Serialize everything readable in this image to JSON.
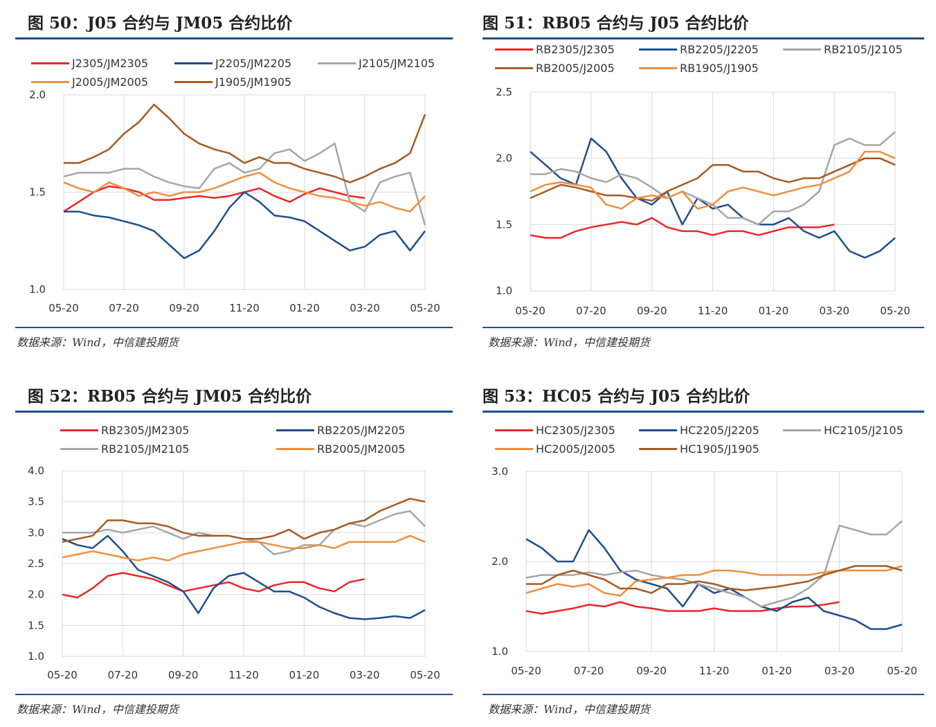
{
  "colors": {
    "red": "#e8262a",
    "blue": "#1f4e8c",
    "gray": "#a6a6a6",
    "orange": "#f28e3c",
    "brown": "#a55a23"
  },
  "chart_data": [
    {
      "type": "line",
      "title": "图 50：J05 合约与 JM05 合约比价",
      "source": "数据来源：Wind，中信建投期货",
      "x_ticks": [
        "05-20",
        "07-20",
        "09-20",
        "11-20",
        "01-20",
        "03-20",
        "05-20"
      ],
      "ylim": [
        1.0,
        2.0
      ],
      "y_ticks": [
        "1.0",
        "1.5",
        "2.0"
      ],
      "grid": true,
      "legend": "top",
      "series": [
        {
          "name": "J2305/JM2305",
          "color": "#e8262a",
          "values": [
            1.4,
            1.45,
            1.5,
            1.53,
            1.52,
            1.5,
            1.46,
            1.46,
            1.47,
            1.48,
            1.47,
            1.48,
            1.5,
            1.52,
            1.48,
            1.45,
            1.49,
            1.52,
            1.5,
            1.48,
            1.47,
            null,
            null,
            null,
            null
          ]
        },
        {
          "name": "J2205/JM2205",
          "color": "#1f4e8c",
          "values": [
            1.4,
            1.4,
            1.38,
            1.37,
            1.35,
            1.33,
            1.3,
            1.23,
            1.16,
            1.2,
            1.3,
            1.42,
            1.5,
            1.45,
            1.38,
            1.37,
            1.35,
            1.3,
            1.25,
            1.2,
            1.22,
            1.28,
            1.3,
            1.2,
            1.3
          ]
        },
        {
          "name": "J2105/JM2105",
          "color": "#a6a6a6",
          "values": [
            1.58,
            1.6,
            1.6,
            1.6,
            1.62,
            1.62,
            1.58,
            1.55,
            1.53,
            1.52,
            1.62,
            1.65,
            1.6,
            1.62,
            1.7,
            1.72,
            1.66,
            1.7,
            1.75,
            1.45,
            1.4,
            1.55,
            1.58,
            1.6,
            1.33
          ]
        },
        {
          "name": "J2005/JM2005",
          "color": "#f28e3c",
          "values": [
            1.55,
            1.52,
            1.5,
            1.55,
            1.52,
            1.48,
            1.5,
            1.48,
            1.5,
            1.5,
            1.52,
            1.55,
            1.58,
            1.6,
            1.55,
            1.52,
            1.5,
            1.48,
            1.47,
            1.45,
            1.43,
            1.45,
            1.42,
            1.4,
            1.48
          ]
        },
        {
          "name": "J1905/JM1905",
          "color": "#a55a23",
          "values": [
            1.65,
            1.65,
            1.68,
            1.72,
            1.8,
            1.86,
            1.95,
            1.88,
            1.8,
            1.75,
            1.72,
            1.7,
            1.65,
            1.68,
            1.65,
            1.65,
            1.62,
            1.6,
            1.58,
            1.55,
            1.58,
            1.62,
            1.65,
            1.7,
            1.9
          ]
        }
      ]
    },
    {
      "type": "line",
      "title": "图 51：RB05 合约与 J05 合约比价",
      "source": "数据来源：Wind，中信建投期货",
      "x_ticks": [
        "05-20",
        "07-20",
        "09-20",
        "11-20",
        "01-20",
        "03-20",
        "05-20"
      ],
      "ylim": [
        1.0,
        2.5
      ],
      "y_ticks": [
        "1.0",
        "1.5",
        "2.0",
        "2.5"
      ],
      "grid": true,
      "legend": "top",
      "series": [
        {
          "name": "RB2305/J2305",
          "color": "#e8262a",
          "values": [
            1.42,
            1.4,
            1.4,
            1.45,
            1.48,
            1.5,
            1.52,
            1.5,
            1.55,
            1.48,
            1.45,
            1.45,
            1.42,
            1.45,
            1.45,
            1.42,
            1.45,
            1.48,
            1.48,
            1.48,
            1.5,
            null,
            null,
            null,
            null
          ]
        },
        {
          "name": "RB2205/J2205",
          "color": "#1f4e8c",
          "values": [
            2.05,
            1.95,
            1.85,
            1.8,
            2.15,
            2.05,
            1.85,
            1.7,
            1.65,
            1.75,
            1.5,
            1.7,
            1.62,
            1.65,
            1.55,
            1.5,
            1.5,
            1.55,
            1.45,
            1.4,
            1.45,
            1.3,
            1.25,
            1.3,
            1.4
          ]
        },
        {
          "name": "RB2105/J2105",
          "color": "#a6a6a6",
          "values": [
            1.88,
            1.88,
            1.92,
            1.9,
            1.85,
            1.82,
            1.88,
            1.85,
            1.78,
            1.7,
            1.75,
            1.7,
            1.65,
            1.55,
            1.55,
            1.5,
            1.6,
            1.6,
            1.65,
            1.75,
            2.1,
            2.15,
            2.1,
            2.1,
            2.2
          ]
        },
        {
          "name": "RB2005/J2005",
          "color": "#a55a23",
          "values": [
            1.7,
            1.75,
            1.8,
            1.78,
            1.75,
            1.72,
            1.72,
            1.7,
            1.68,
            1.75,
            1.8,
            1.85,
            1.95,
            1.95,
            1.9,
            1.9,
            1.85,
            1.82,
            1.85,
            1.85,
            1.9,
            1.95,
            2.0,
            2.0,
            1.95
          ]
        },
        {
          "name": "RB1905/J1905",
          "color": "#f28e3c",
          "values": [
            1.75,
            1.8,
            1.82,
            1.8,
            1.78,
            1.65,
            1.62,
            1.7,
            1.72,
            1.7,
            1.75,
            1.62,
            1.65,
            1.75,
            1.78,
            1.75,
            1.72,
            1.75,
            1.78,
            1.8,
            1.85,
            1.9,
            2.05,
            2.05,
            2.0
          ]
        }
      ]
    },
    {
      "type": "line",
      "title": "图 52：RB05 合约与 JM05 合约比价",
      "source": "数据来源：Wind，中信建投期货",
      "x_ticks": [
        "05-20",
        "07-20",
        "09-20",
        "11-20",
        "01-20",
        "03-20",
        "05-20"
      ],
      "ylim": [
        1.0,
        4.0
      ],
      "y_ticks": [
        "1.0",
        "1.5",
        "2.0",
        "2.5",
        "3.0",
        "3.5",
        "4.0"
      ],
      "grid": true,
      "legend": "top",
      "series": [
        {
          "name": "RB2305/JM2305",
          "color": "#e8262a",
          "values": [
            2.0,
            1.95,
            2.1,
            2.3,
            2.35,
            2.3,
            2.25,
            2.15,
            2.05,
            2.1,
            2.15,
            2.2,
            2.1,
            2.05,
            2.15,
            2.2,
            2.2,
            2.1,
            2.05,
            2.2,
            2.25,
            null,
            null,
            null,
            null
          ]
        },
        {
          "name": "RB2205/JM2205",
          "color": "#1f4e8c",
          "values": [
            2.9,
            2.8,
            2.75,
            2.95,
            2.7,
            2.4,
            2.3,
            2.2,
            2.05,
            1.7,
            2.1,
            2.3,
            2.35,
            2.2,
            2.05,
            2.05,
            1.95,
            1.8,
            1.7,
            1.62,
            1.6,
            1.62,
            1.65,
            1.62,
            1.75
          ]
        },
        {
          "name": "RB2105/JM2105",
          "color": "#a6a6a6",
          "values": [
            3.0,
            3.0,
            3.0,
            3.05,
            3.0,
            3.05,
            3.1,
            3.0,
            2.9,
            3.0,
            2.95,
            2.95,
            2.9,
            2.85,
            2.65,
            2.7,
            2.8,
            2.8,
            3.05,
            3.15,
            3.1,
            3.2,
            3.3,
            3.35,
            3.1
          ]
        },
        {
          "name": "RB2005/JM2005",
          "color": "#f28e3c",
          "values": [
            2.6,
            2.65,
            2.7,
            2.65,
            2.6,
            2.55,
            2.6,
            2.55,
            2.65,
            2.7,
            2.75,
            2.8,
            2.85,
            2.85,
            2.8,
            2.75,
            2.75,
            2.8,
            2.75,
            2.85,
            2.85,
            2.85,
            2.85,
            2.95,
            2.85
          ]
        },
        {
          "color": "#a55a23",
          "values": [
            2.85,
            2.9,
            2.95,
            3.2,
            3.2,
            3.15,
            3.15,
            3.1,
            3.0,
            2.95,
            2.95,
            2.95,
            2.9,
            2.9,
            2.95,
            3.05,
            2.9,
            3.0,
            3.05,
            3.15,
            3.2,
            3.35,
            3.45,
            3.55,
            3.5
          ]
        }
      ]
    },
    {
      "type": "line",
      "title": "图 53：HC05 合约与 J05 合约比价",
      "source": "数据来源：Wind，中信建投期货",
      "x_ticks": [
        "05-20",
        "07-20",
        "09-20",
        "11-20",
        "01-20",
        "03-20",
        "05-20"
      ],
      "ylim": [
        1.0,
        3.0
      ],
      "y_ticks": [
        "1.0",
        "2.0",
        "3.0"
      ],
      "grid": true,
      "legend": "top",
      "series": [
        {
          "name": "HC2305/J2305",
          "color": "#e8262a",
          "values": [
            1.45,
            1.42,
            1.45,
            1.48,
            1.52,
            1.5,
            1.55,
            1.5,
            1.48,
            1.45,
            1.45,
            1.45,
            1.48,
            1.45,
            1.45,
            1.45,
            1.48,
            1.5,
            1.5,
            1.52,
            1.55,
            null,
            null,
            null,
            null
          ]
        },
        {
          "name": "HC2205/J2205",
          "color": "#1f4e8c",
          "values": [
            2.25,
            2.15,
            2.0,
            2.0,
            2.35,
            2.15,
            1.9,
            1.8,
            1.75,
            1.7,
            1.5,
            1.75,
            1.65,
            1.7,
            1.6,
            1.5,
            1.45,
            1.55,
            1.6,
            1.45,
            1.4,
            1.35,
            1.25,
            1.25,
            1.3
          ]
        },
        {
          "name": "HC2105/J2105",
          "color": "#a6a6a6",
          "values": [
            1.82,
            1.85,
            1.85,
            1.85,
            1.88,
            1.85,
            1.88,
            1.9,
            1.85,
            1.82,
            1.8,
            1.75,
            1.7,
            1.65,
            1.6,
            1.5,
            1.55,
            1.6,
            1.7,
            1.85,
            2.4,
            2.35,
            2.3,
            2.3,
            2.45
          ]
        },
        {
          "name": "HC2005/J2005",
          "color": "#f28e3c",
          "values": [
            1.65,
            1.7,
            1.75,
            1.72,
            1.75,
            1.65,
            1.62,
            1.78,
            1.8,
            1.82,
            1.85,
            1.85,
            1.9,
            1.9,
            1.88,
            1.85,
            1.85,
            1.85,
            1.85,
            1.88,
            1.9,
            1.9,
            1.9,
            1.9,
            1.95
          ]
        },
        {
          "name": "HC1905/J1905",
          "color": "#a55a23",
          "values": [
            1.75,
            1.75,
            1.85,
            1.9,
            1.85,
            1.8,
            1.7,
            1.7,
            1.65,
            1.75,
            1.75,
            1.78,
            1.75,
            1.7,
            1.68,
            1.7,
            1.72,
            1.75,
            1.78,
            1.85,
            1.9,
            1.95,
            1.95,
            1.95,
            1.9
          ]
        }
      ]
    }
  ]
}
